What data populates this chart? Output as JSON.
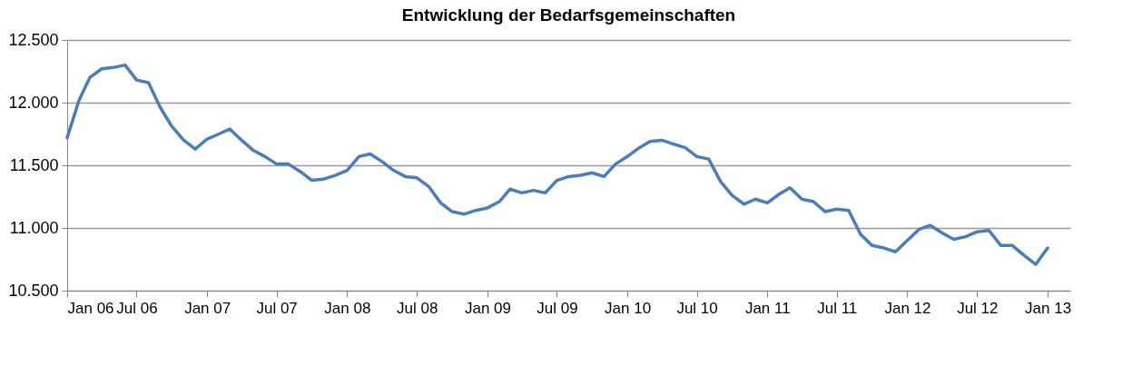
{
  "chart_data": {
    "type": "line",
    "title": "Entwicklung der Bedarfsgemeinschaften",
    "x": [
      "2006-01",
      "2006-02",
      "2006-03",
      "2006-04",
      "2006-05",
      "2006-06",
      "2006-07",
      "2006-08",
      "2006-09",
      "2006-10",
      "2006-11",
      "2006-12",
      "2007-01",
      "2007-02",
      "2007-03",
      "2007-04",
      "2007-05",
      "2007-06",
      "2007-07",
      "2007-08",
      "2007-09",
      "2007-10",
      "2007-11",
      "2007-12",
      "2008-01",
      "2008-02",
      "2008-03",
      "2008-04",
      "2008-05",
      "2008-06",
      "2008-07",
      "2008-08",
      "2008-09",
      "2008-10",
      "2008-11",
      "2008-12",
      "2009-01",
      "2009-02",
      "2009-03",
      "2009-04",
      "2009-05",
      "2009-06",
      "2009-07",
      "2009-08",
      "2009-09",
      "2009-10",
      "2009-11",
      "2009-12",
      "2010-01",
      "2010-02",
      "2010-03",
      "2010-04",
      "2010-05",
      "2010-06",
      "2010-07",
      "2010-08",
      "2010-09",
      "2010-10",
      "2010-11",
      "2010-12",
      "2011-01",
      "2011-02",
      "2011-03",
      "2011-04",
      "2011-05",
      "2011-06",
      "2011-07",
      "2011-08",
      "2011-09",
      "2011-10",
      "2011-11",
      "2011-12",
      "2012-01",
      "2012-02",
      "2012-03",
      "2012-04",
      "2012-05",
      "2012-06",
      "2012-07",
      "2012-08",
      "2012-09",
      "2012-10",
      "2012-11",
      "2012-12",
      "2013-01"
    ],
    "series": [
      {
        "color": "#4a7ebb",
        "values": [
          11720,
          12020,
          12200,
          12270,
          12280,
          12300,
          12180,
          12160,
          11960,
          11810,
          11700,
          11630,
          11710,
          11750,
          11790,
          11700,
          11620,
          11570,
          11510,
          11510,
          11450,
          11380,
          11390,
          11420,
          11460,
          11570,
          11590,
          11530,
          11460,
          11410,
          11400,
          11330,
          11200,
          11130,
          11110,
          11140,
          11160,
          11210,
          11310,
          11280,
          11300,
          11280,
          11380,
          11410,
          11420,
          11440,
          11410,
          11510,
          11570,
          11640,
          11690,
          11700,
          11670,
          11640,
          11570,
          11550,
          11370,
          11260,
          11190,
          11230,
          11200,
          11270,
          11320,
          11230,
          11210,
          11130,
          11150,
          11140,
          10950,
          10860,
          10840,
          10810,
          10900,
          10990,
          11020,
          10960,
          10910,
          10930,
          10970,
          10980,
          10860,
          10860,
          10780,
          10710,
          10840
        ]
      }
    ],
    "xlim": [
      "2006-01",
      "2013-03"
    ],
    "xticks": [
      {
        "value": "2006-01",
        "label": "Jan 06"
      },
      {
        "value": "2006-07",
        "label": "Jul 06"
      },
      {
        "value": "2007-01",
        "label": "Jan 07"
      },
      {
        "value": "2007-07",
        "label": "Jul 07"
      },
      {
        "value": "2008-01",
        "label": "Jan 08"
      },
      {
        "value": "2008-07",
        "label": "Jul 08"
      },
      {
        "value": "2009-01",
        "label": "Jan 09"
      },
      {
        "value": "2009-07",
        "label": "Jul 09"
      },
      {
        "value": "2010-01",
        "label": "Jan 10"
      },
      {
        "value": "2010-07",
        "label": "Jul 10"
      },
      {
        "value": "2011-01",
        "label": "Jan 11"
      },
      {
        "value": "2011-07",
        "label": "Jul 11"
      },
      {
        "value": "2012-01",
        "label": "Jan 12"
      },
      {
        "value": "2012-07",
        "label": "Jul 12"
      },
      {
        "value": "2013-01",
        "label": "Jan 13"
      }
    ],
    "ylim": [
      10500,
      12500
    ],
    "yticks": [
      {
        "value": 10500,
        "label": "10.500"
      },
      {
        "value": 11000,
        "label": "11.000"
      },
      {
        "value": 11500,
        "label": "11.500"
      },
      {
        "value": 12000,
        "label": "12.000"
      },
      {
        "value": 12500,
        "label": "12.500"
      }
    ],
    "grid": "y",
    "legend": false,
    "marker": "none",
    "line_style": "solid"
  }
}
